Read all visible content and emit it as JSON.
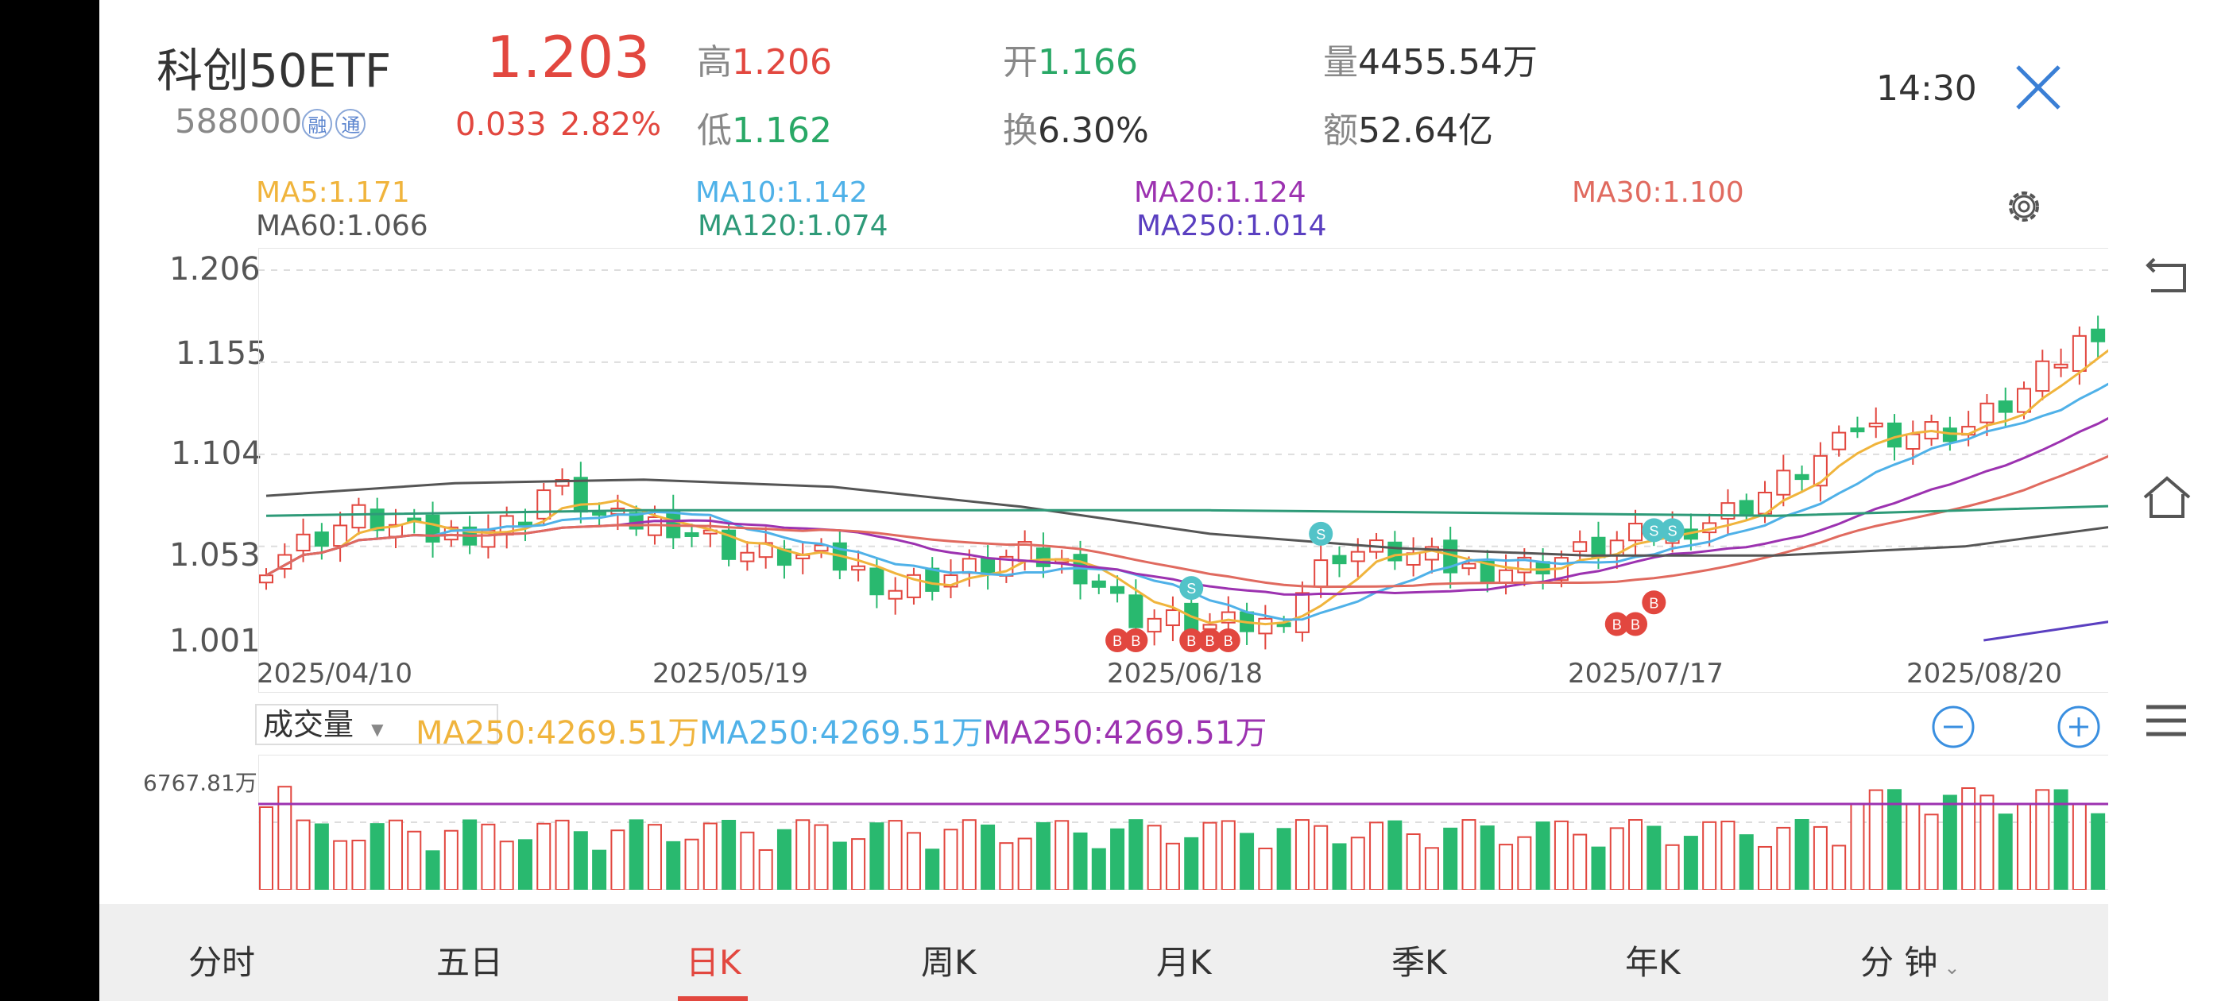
{
  "header": {
    "name": "科创50ETF",
    "code": "588000",
    "badge1": "融",
    "badge2": "通",
    "price": "1.203",
    "change": "0.033",
    "change_pct": "2.82%",
    "high_label": "高",
    "high": "1.206",
    "low_label": "低",
    "low": "1.162",
    "open_label": "开",
    "open": "1.166",
    "turnover_label": "换",
    "turnover": "6.30%",
    "volume_label": "量",
    "volume": "4455.54万",
    "amount_label": "额",
    "amount": "52.64亿",
    "time": "14:30"
  },
  "ma_legend": {
    "ma5": "MA5:1.171",
    "ma10": "MA10:1.142",
    "ma20": "MA20:1.124",
    "ma30": "MA30:1.100",
    "ma60": "MA60:1.066",
    "ma120": "MA120:1.074",
    "ma250": "MA250:1.014"
  },
  "colors": {
    "up": "#e2473f",
    "down": "#29b96f",
    "ma5": "#f0b43c",
    "ma10": "#4fb1e8",
    "ma20": "#9c32b0",
    "ma30": "#e06a5f",
    "ma60": "#555555",
    "ma120": "#2e9a78",
    "ma250": "#5a3fc0"
  },
  "chart_data": {
    "type": "candlestick",
    "y_ticks": [
      "1.206",
      "1.155",
      "1.104",
      "1.053",
      "1.001"
    ],
    "ylim": [
      1.001,
      1.206
    ],
    "x_ticks": [
      "2025/04/10",
      "2025/05/19",
      "2025/06/18",
      "2025/07/17",
      "2025/08/20"
    ],
    "signal_labels": {
      "buy": "B",
      "sell": "S"
    },
    "volume": {
      "selector": "成交量",
      "ma_labels": [
        "MA250:4269.51万",
        "MA250:4269.51万",
        "MA250:4269.51万"
      ],
      "max_label": "6767.81万"
    }
  },
  "icons": {
    "close": "close-icon",
    "settings": "gear-icon",
    "back": "back-icon",
    "home": "home-icon",
    "menu": "menu-icon",
    "zoom_out": "zoom-out-icon",
    "zoom_in": "zoom-in-icon"
  },
  "tabs": [
    "分时",
    "五日",
    "日K",
    "周K",
    "月K",
    "季K",
    "年K",
    "分 钟"
  ],
  "active_tab": 2
}
